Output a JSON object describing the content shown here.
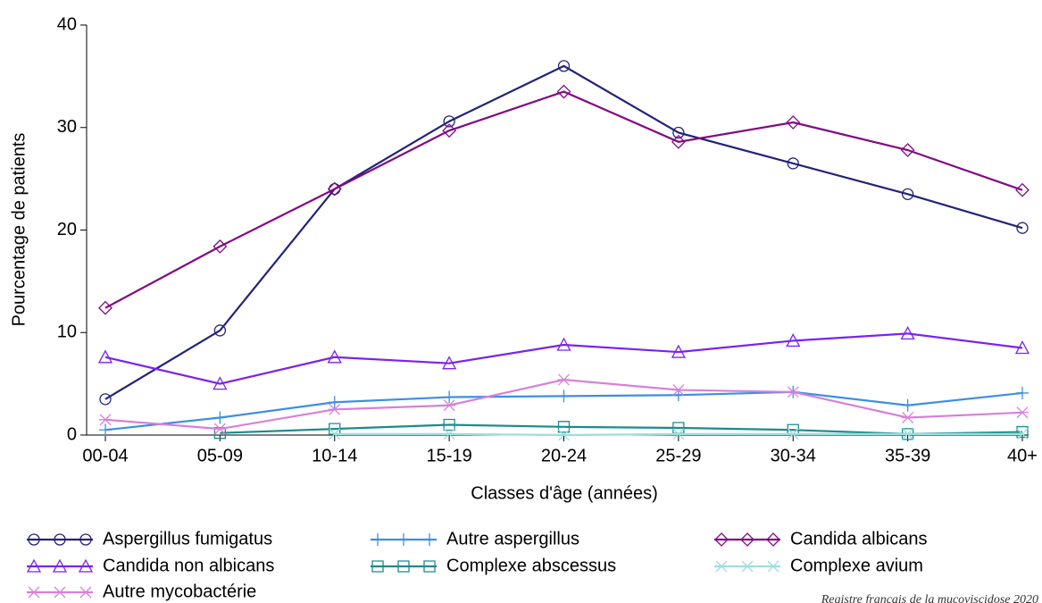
{
  "chart_data": {
    "type": "line",
    "x_label": "Classes d'âge (années)",
    "y_label": "Pourcentage de patients",
    "source": "Registre français de la mucoviscidose 2020",
    "categories": [
      "00-04",
      "05-09",
      "10-14",
      "15-19",
      "20-24",
      "25-29",
      "30-34",
      "35-39",
      "40+"
    ],
    "ylim": [
      0,
      40
    ],
    "yticks": [
      0,
      10,
      20,
      30,
      40
    ],
    "series": [
      {
        "name": "Aspergillus fumigatus",
        "color": "#23237a",
        "marker": "circle",
        "values": [
          3.5,
          10.2,
          24,
          30.6,
          36,
          29.5,
          26.5,
          23.5,
          20.2
        ]
      },
      {
        "name": "Autre aspergillus",
        "color": "#3b8fe4",
        "marker": "plus",
        "values": [
          0.5,
          1.7,
          3.2,
          3.7,
          3.8,
          3.9,
          4.2,
          2.9,
          4.1
        ]
      },
      {
        "name": "Candida albicans",
        "color": "#820a82",
        "marker": "diamond",
        "values": [
          12.4,
          18.4,
          24,
          29.7,
          33.5,
          28.6,
          30.5,
          27.8,
          23.9
        ]
      },
      {
        "name": "Candida non albicans",
        "color": "#7a22f0",
        "marker": "triangle",
        "values": [
          7.6,
          5,
          7.6,
          7,
          8.8,
          8.1,
          9.2,
          9.9,
          8.5
        ]
      },
      {
        "name": "Complexe abscessus",
        "color": "#1a8c8c",
        "marker": "square",
        "values": [
          null,
          0.2,
          0.6,
          1.0,
          0.8,
          0.7,
          0.5,
          0.1,
          0.3
        ]
      },
      {
        "name": "Complexe avium",
        "color": "#9adede",
        "marker": "x",
        "values": [
          null,
          null,
          0.1,
          0.1,
          0,
          0.1,
          0.1,
          0.1,
          0.1
        ]
      },
      {
        "name": "Autre mycobactérie",
        "color": "#d880d8",
        "marker": "star",
        "values": [
          1.5,
          0.6,
          2.5,
          2.9,
          5.4,
          4.4,
          4.2,
          1.7,
          2.2
        ]
      }
    ]
  }
}
